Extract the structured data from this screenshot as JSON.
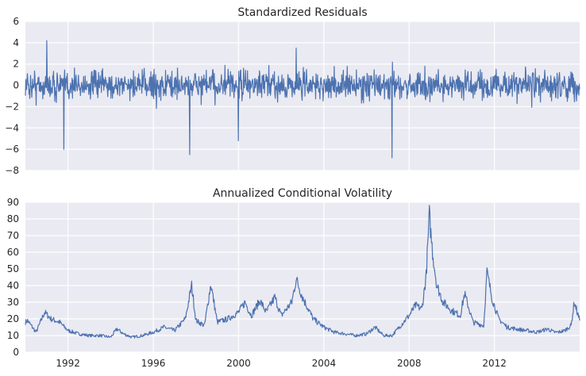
{
  "chart_data": [
    {
      "type": "line",
      "title": "Standardized Residuals",
      "xlabel": "",
      "ylabel": "",
      "xlim": [
        1990.0,
        2016.0
      ],
      "ylim": [
        -8,
        6
      ],
      "yticks": [
        "6",
        "4",
        "2",
        "0",
        "−2",
        "−4",
        "−6",
        "−8"
      ],
      "ytick_values": [
        6,
        4,
        2,
        0,
        -2,
        -4,
        -6,
        -8
      ],
      "xtick_values": [
        1992,
        1996,
        2000,
        2004,
        2008,
        2012
      ],
      "grid": true,
      "series_color": "#4c72b0",
      "background": "#eaeaf2",
      "spikes": [
        {
          "x": 1991.0,
          "y": 4.2
        },
        {
          "x": 1991.8,
          "y": -6.0
        },
        {
          "x": 1997.7,
          "y": -6.5
        },
        {
          "x": 2000.0,
          "y": -5.2
        },
        {
          "x": 2002.7,
          "y": 3.5
        },
        {
          "x": 2007.2,
          "y": -6.8
        }
      ],
      "typical_range": [
        -2.5,
        2.5
      ]
    },
    {
      "type": "line",
      "title": "Annualized Conditional Volatility",
      "xlabel": "",
      "ylabel": "",
      "xlim": [
        1990.0,
        2016.0
      ],
      "ylim": [
        0,
        90
      ],
      "yticks": [
        "90",
        "80",
        "70",
        "60",
        "50",
        "40",
        "30",
        "20",
        "10",
        "0"
      ],
      "ytick_values": [
        90,
        80,
        70,
        60,
        50,
        40,
        30,
        20,
        10,
        0
      ],
      "xticks": [
        "1992",
        "1996",
        "2000",
        "2004",
        "2008",
        "2012"
      ],
      "xtick_values": [
        1992,
        1996,
        2000,
        2004,
        2008,
        2012
      ],
      "grid": true,
      "series_color": "#4c72b0",
      "background": "#eaeaf2",
      "x": [
        1990.0,
        1990.1,
        1990.5,
        1990.9,
        1991.2,
        1991.6,
        1992.0,
        1992.5,
        1993.0,
        1993.5,
        1994.0,
        1994.3,
        1994.6,
        1995.0,
        1995.5,
        1996.0,
        1996.5,
        1997.0,
        1997.5,
        1997.8,
        1998.0,
        1998.4,
        1998.7,
        1999.0,
        1999.5,
        2000.0,
        2000.3,
        2000.6,
        2001.0,
        2001.3,
        2001.7,
        2002.0,
        2002.5,
        2002.7,
        2003.0,
        2003.5,
        2004.0,
        2004.5,
        2005.0,
        2005.5,
        2006.0,
        2006.4,
        2006.8,
        2007.2,
        2007.6,
        2008.0,
        2008.3,
        2008.6,
        2008.8,
        2008.95,
        2009.1,
        2009.3,
        2009.6,
        2010.0,
        2010.4,
        2010.6,
        2011.0,
        2011.5,
        2011.65,
        2011.9,
        2012.2,
        2012.6,
        2013.0,
        2013.5,
        2014.0,
        2014.5,
        2014.8,
        2015.0,
        2015.3,
        2015.6,
        2015.75,
        2016.0
      ],
      "values": [
        18,
        19,
        12,
        24,
        20,
        18,
        13,
        11,
        10,
        10,
        9,
        14,
        11,
        9,
        10,
        12,
        15,
        13,
        20,
        40,
        19,
        16,
        41,
        18,
        20,
        24,
        30,
        22,
        31,
        24,
        33,
        22,
        30,
        44,
        33,
        20,
        15,
        12,
        11,
        10,
        11,
        15,
        10,
        10,
        16,
        22,
        28,
        26,
        46,
        82,
        60,
        40,
        30,
        25,
        22,
        35,
        18,
        16,
        48,
        32,
        20,
        15,
        14,
        13,
        12,
        14,
        12,
        12,
        13,
        16,
        30,
        19
      ]
    }
  ]
}
